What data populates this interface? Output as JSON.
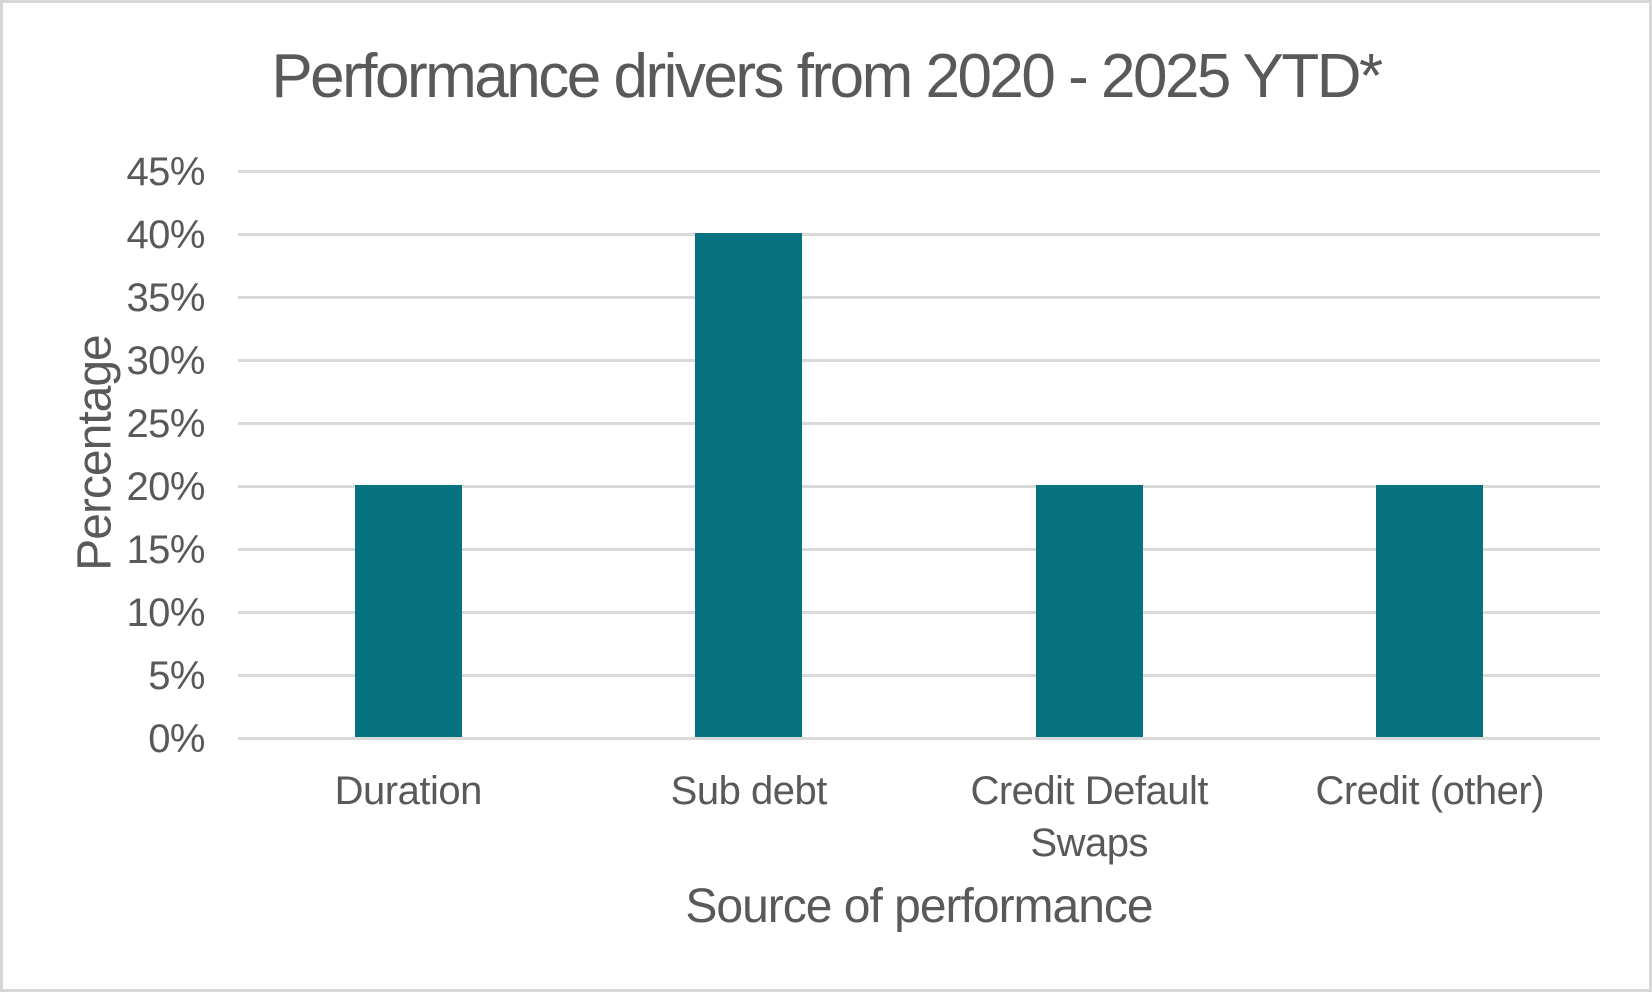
{
  "window": {
    "background": "#ffffff",
    "border_color": "#d6d6d6"
  },
  "chart_data": {
    "type": "bar",
    "title": "Performance drivers from 2020 - 2025 YTD*",
    "xlabel": "Source of performance",
    "ylabel": "Percentage",
    "categories": [
      "Duration",
      "Sub debt",
      "Credit Default Swaps",
      "Credit (other)"
    ],
    "values": [
      20,
      40,
      20,
      20
    ],
    "unit": "%",
    "ylim": [
      0,
      45
    ],
    "ytick_step": 5,
    "yticks": [
      {
        "value": 0,
        "label": "0%"
      },
      {
        "value": 5,
        "label": "5%"
      },
      {
        "value": 10,
        "label": "10%"
      },
      {
        "value": 15,
        "label": "15%"
      },
      {
        "value": 20,
        "label": "20%"
      },
      {
        "value": 25,
        "label": "25%"
      },
      {
        "value": 30,
        "label": "30%"
      },
      {
        "value": 35,
        "label": "35%"
      },
      {
        "value": 40,
        "label": "40%"
      },
      {
        "value": 45,
        "label": "45%"
      }
    ],
    "grid": "horizontal-only",
    "legend": "none",
    "data_labels": "none",
    "bar_color": "#06727f",
    "gridline_color": "#d9d9d9",
    "text_color": "#595959"
  }
}
